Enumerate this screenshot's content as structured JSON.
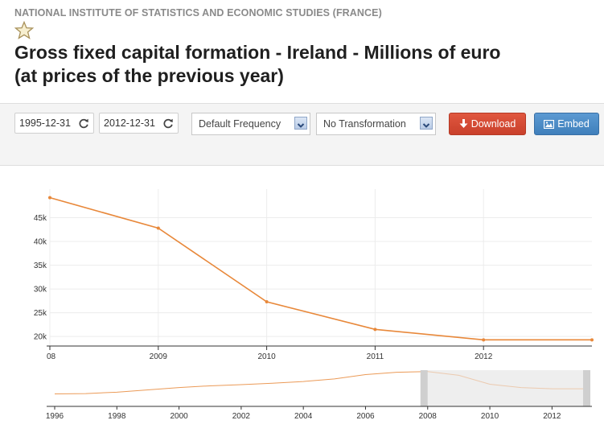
{
  "header": {
    "source": "NATIONAL INSTITUTE OF STATISTICS AND ECONOMIC STUDIES (FRANCE)",
    "title_line1": "Gross fixed capital formation - Ireland - Millions of euro",
    "title_line2": "(at prices of the previous year)"
  },
  "toolbar": {
    "start_date": "1995-12-31",
    "end_date": "2012-12-31",
    "frequency": "Default Frequency",
    "transformation": "No Transformation",
    "download_label": "Download",
    "embed_label": "Embed"
  },
  "colors": {
    "series": "#e8883a",
    "download": "#d24a35",
    "embed": "#4a8cc7"
  },
  "icons": [
    "star-icon",
    "refresh-icon",
    "download-icon",
    "image-icon",
    "dropdown-arrow-icon"
  ],
  "chart_data": {
    "type": "line",
    "main": {
      "x": [
        "2008",
        "2009",
        "2010",
        "2011",
        "2012",
        "2013"
      ],
      "y": [
        49200,
        42800,
        27300,
        21500,
        19300,
        19300
      ],
      "x_tick_labels": [
        "08",
        "2009",
        "2010",
        "2011",
        "2012"
      ],
      "y_tick_labels": [
        "20k",
        "25k",
        "30k",
        "35k",
        "40k",
        "45k"
      ],
      "ylim": [
        18000,
        51000
      ],
      "xlim": [
        "2008",
        "2013"
      ],
      "grid": true
    },
    "navigator": {
      "x": [
        1996,
        1997,
        1998,
        1999,
        2000,
        2001,
        2002,
        2003,
        2004,
        2005,
        2006,
        2007,
        2008,
        2009,
        2010,
        2011,
        2012,
        2013
      ],
      "y": [
        10500,
        11000,
        13500,
        17500,
        21500,
        24500,
        26500,
        29000,
        32000,
        36500,
        44000,
        48000,
        49200,
        42800,
        27300,
        21500,
        19300,
        19300
      ],
      "x_tick_labels": [
        "1996",
        "1998",
        "2000",
        "2002",
        "2004",
        "2006",
        "2008",
        "2010",
        "2012"
      ],
      "selected_range": [
        2008,
        2013
      ]
    }
  }
}
